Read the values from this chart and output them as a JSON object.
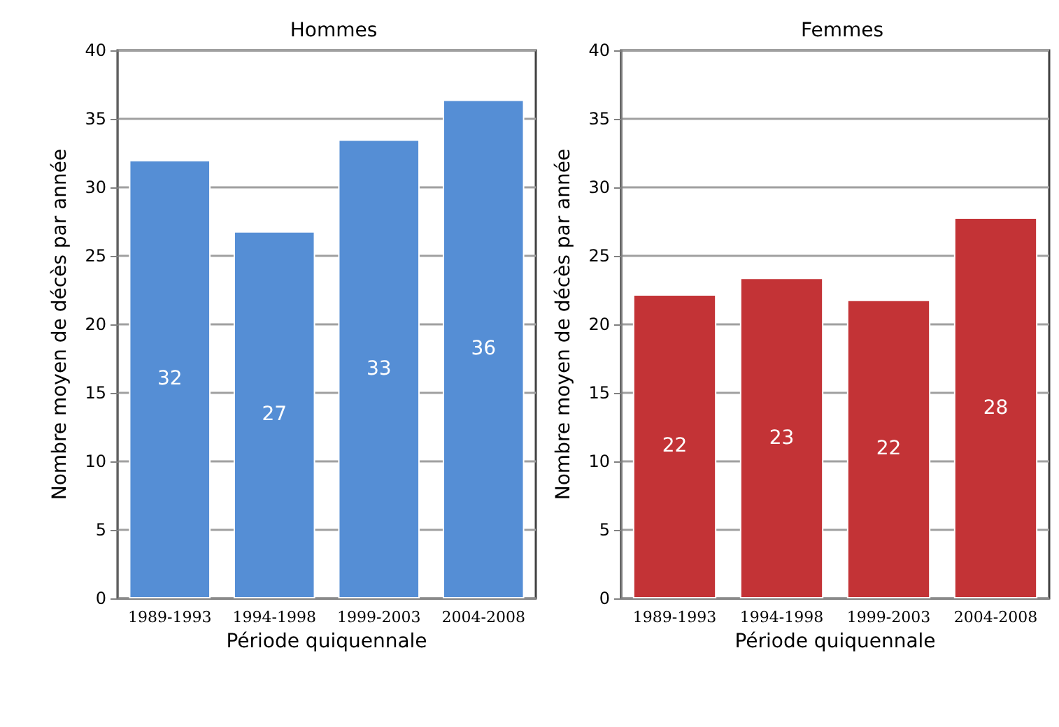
{
  "chart_data": [
    {
      "type": "bar",
      "title": "Hommes",
      "xlabel": "Période quiquennale",
      "ylabel": "Nombre moyen de décès par année",
      "categories": [
        "1989-1993",
        "1994-1998",
        "1999-2003",
        "2004-2008"
      ],
      "values": [
        32.0,
        26.8,
        33.5,
        36.4
      ],
      "value_labels": [
        "32",
        "27",
        "33",
        "36"
      ],
      "color": "#558ed5",
      "ylim": [
        0,
        40
      ],
      "yticks": [
        0,
        5,
        10,
        15,
        20,
        25,
        30,
        35,
        40
      ],
      "grid": "y"
    },
    {
      "type": "bar",
      "title": "Femmes",
      "xlabel": "Période quiquennale",
      "ylabel": "Nombre moyen de décès par année",
      "categories": [
        "1989-1993",
        "1994-1998",
        "1999-2003",
        "2004-2008"
      ],
      "values": [
        22.2,
        23.4,
        21.8,
        27.8
      ],
      "value_labels": [
        "22",
        "23",
        "22",
        "28"
      ],
      "color": "#c33336",
      "ylim": [
        0,
        40
      ],
      "yticks": [
        0,
        5,
        10,
        15,
        20,
        25,
        30,
        35,
        40
      ],
      "grid": "y"
    }
  ]
}
